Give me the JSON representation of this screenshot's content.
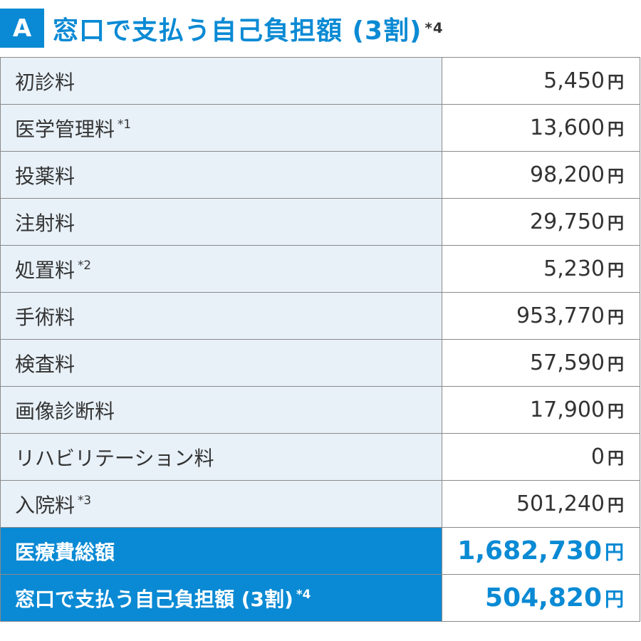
{
  "header": {
    "badge": "A",
    "title": "窓口で支払う自己負担額 (3割)",
    "title_note": "*4"
  },
  "rows": [
    {
      "label": "初診料",
      "note": "",
      "amount": "5,450",
      "unit": "円"
    },
    {
      "label": "医学管理料",
      "note": "*1",
      "amount": "13,600",
      "unit": "円"
    },
    {
      "label": "投薬料",
      "note": "",
      "amount": "98,200",
      "unit": "円"
    },
    {
      "label": "注射料",
      "note": "",
      "amount": "29,750",
      "unit": "円"
    },
    {
      "label": "処置料",
      "note": "*2",
      "amount": "5,230",
      "unit": "円"
    },
    {
      "label": "手術料",
      "note": "",
      "amount": "953,770",
      "unit": "円"
    },
    {
      "label": "検査料",
      "note": "",
      "amount": "57,590",
      "unit": "円"
    },
    {
      "label": "画像診断料",
      "note": "",
      "amount": "17,900",
      "unit": "円"
    },
    {
      "label": "リハビリテーション料",
      "note": "",
      "amount": "0",
      "unit": "円"
    },
    {
      "label": "入院料",
      "note": "*3",
      "amount": "501,240",
      "unit": "円"
    }
  ],
  "totals": [
    {
      "label": "医療費総額",
      "note": "",
      "amount": "1,682,730",
      "unit": "円"
    },
    {
      "label": "窓口で支払う自己負担額 (3割)",
      "note": "*4",
      "amount": "504,820",
      "unit": "円"
    }
  ],
  "colors": {
    "accent": "#0a8ad4",
    "row_bg": "#e8f1f8",
    "border": "#8a8a8a",
    "text": "#333333"
  }
}
